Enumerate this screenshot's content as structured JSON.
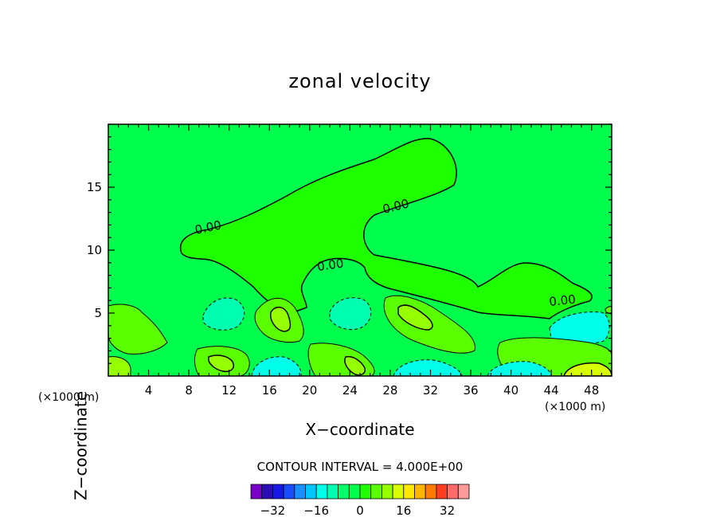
{
  "chart_data": {
    "type": "contour",
    "title": "zonal velocity",
    "xlabel": "X−coordinate",
    "ylabel": "Z−coordinate",
    "x_unit_left": "(×1000 m)",
    "x_unit_right": "(×1000 m)",
    "xlim": [
      0,
      50
    ],
    "ylim": [
      0,
      20
    ],
    "x_ticks": [
      4,
      8,
      12,
      16,
      20,
      24,
      28,
      32,
      36,
      40,
      44,
      48
    ],
    "y_ticks": [
      5,
      10,
      15
    ],
    "contour_interval_label": "CONTOUR INTERVAL = 4.000E+00",
    "contour_labels": [
      "0.00",
      "0.00",
      "0.00",
      "0.00"
    ],
    "colorbar": {
      "levels": [
        -36,
        -32,
        -28,
        -24,
        -20,
        -16,
        -12,
        -8,
        -4,
        0,
        4,
        8,
        12,
        16,
        20,
        24,
        28,
        32,
        36
      ],
      "colors": [
        "#7a00c8",
        "#2a10b4",
        "#1818e6",
        "#1a4cff",
        "#1a90ff",
        "#00c6ff",
        "#00ffe8",
        "#00ffb0",
        "#00ff6a",
        "#00ff4c",
        "#1eff00",
        "#5aff00",
        "#96ff00",
        "#d8ff00",
        "#ffe600",
        "#ffb400",
        "#ff7a00",
        "#ff3c1e",
        "#ff6a6a",
        "#ff9a9a"
      ],
      "tick_labels": [
        "−32",
        "−16",
        "0",
        "16",
        "32"
      ],
      "tick_values": [
        -32,
        -16,
        0,
        16,
        32
      ]
    }
  }
}
